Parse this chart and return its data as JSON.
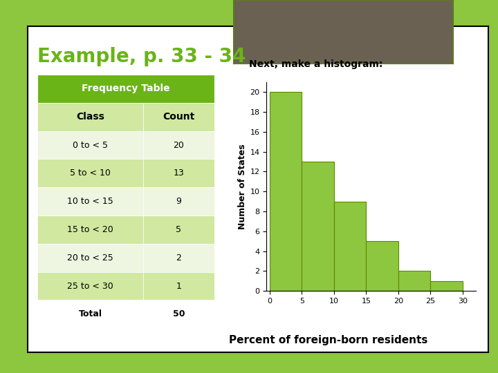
{
  "title": "Example, p. 33 - 34",
  "title_color": "#6ab417",
  "background_outer": "#8dc63f",
  "background_inner": "#ffffff",
  "gray_rect_color": "#6b6152",
  "table_header": "Frequency Table",
  "table_header_bg": "#6ab417",
  "table_header_color": "#ffffff",
  "table_col1_header": "Class",
  "table_col2_header": "Count",
  "table_rows": [
    [
      "0 to < 5",
      "20"
    ],
    [
      "5 to < 10",
      "13"
    ],
    [
      "10 to < 15",
      "9"
    ],
    [
      "15 to < 20",
      "5"
    ],
    [
      "20 to < 25",
      "2"
    ],
    [
      "25 to < 30",
      "1"
    ],
    [
      "Total",
      "50"
    ]
  ],
  "table_alt_bg": "#d0e8a0",
  "table_white_bg": "#eef5e0",
  "hist_title": "Next, make a histogram:",
  "hist_xlabel": "Percent of foreign-born residents",
  "hist_ylabel": "Number of States",
  "hist_bar_color": "#8dc63f",
  "hist_bar_edge": "#5a8a00",
  "hist_counts": [
    20,
    13,
    9,
    5,
    2,
    1
  ],
  "hist_bins": [
    0,
    5,
    10,
    15,
    20,
    25,
    30
  ],
  "hist_xlim": [
    -0.5,
    32
  ],
  "hist_ylim": [
    0,
    21
  ],
  "hist_yticks": [
    0,
    2,
    4,
    6,
    8,
    10,
    12,
    14,
    16,
    18,
    20
  ],
  "hist_xticks": [
    0,
    5,
    10,
    15,
    20,
    25,
    30
  ]
}
